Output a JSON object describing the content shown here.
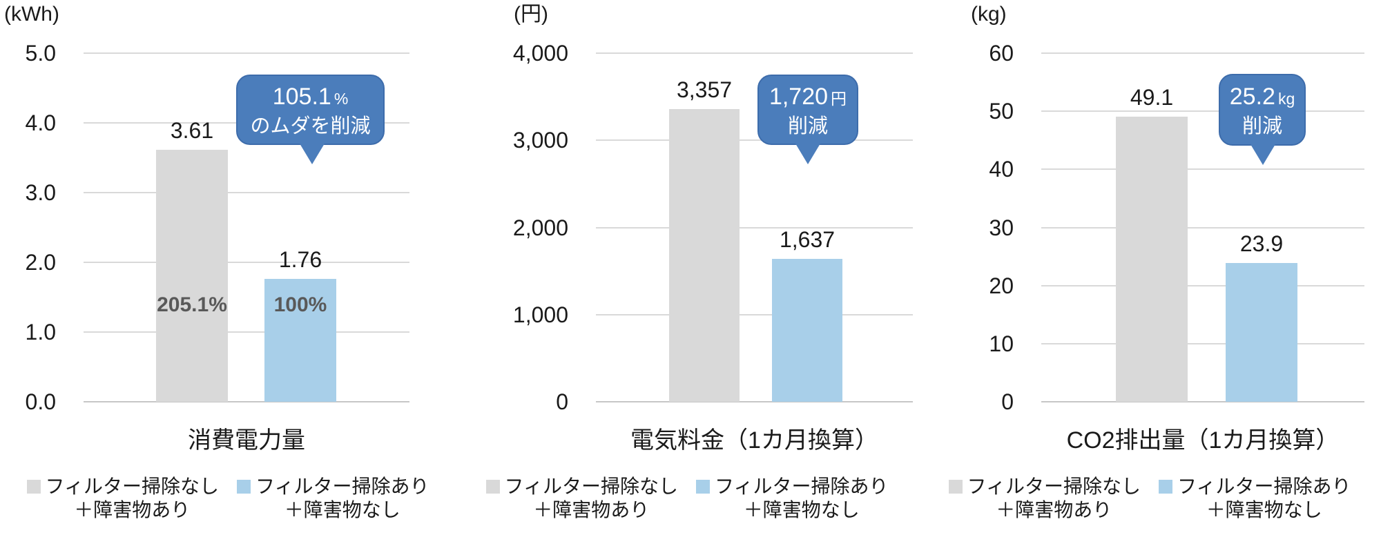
{
  "colors": {
    "bar_gray": "#d9d9d9",
    "bar_blue": "#a8cfe9",
    "callout_fill": "#4b7dbb",
    "callout_border": "#3d6cab",
    "gridline": "#d9d9d9",
    "inside_bar_label": "#595959",
    "text": "#1a1a1a"
  },
  "legend": {
    "items": [
      {
        "line1": "フィルター掃除なし",
        "line2": "＋障害物あり",
        "color": "#d9d9d9"
      },
      {
        "line1": "フィルター掃除あり",
        "line2": "＋障害物なし",
        "color": "#a8cfe9"
      }
    ]
  },
  "chart_data": [
    {
      "type": "bar",
      "unit": "(kWh)",
      "title": "消費電力量",
      "ylim": [
        0,
        5
      ],
      "yticks": [
        "5.0",
        "4.0",
        "3.0",
        "2.0",
        "1.0",
        "0.0"
      ],
      "categories": [
        "フィルター掃除なし＋障害物あり",
        "フィルター掃除あり＋障害物なし"
      ],
      "values": [
        3.61,
        1.76
      ],
      "value_labels": [
        "3.61",
        "1.76"
      ],
      "bar_inner_labels": [
        "205.1%",
        "100%"
      ],
      "callout": {
        "line1": "105.1",
        "line1_suffix": "%",
        "line2": "のムダを削減"
      },
      "grid": true,
      "legend_position": "bottom"
    },
    {
      "type": "bar",
      "unit": "(円)",
      "title": "電気料金（1カ月換算）",
      "ylim": [
        0,
        4000
      ],
      "yticks": [
        "4,000",
        "3,000",
        "2,000",
        "1,000",
        "0"
      ],
      "categories": [
        "フィルター掃除なし＋障害物あり",
        "フィルター掃除あり＋障害物なし"
      ],
      "values": [
        3357,
        1637
      ],
      "value_labels": [
        "3,357",
        "1,637"
      ],
      "bar_inner_labels": null,
      "callout": {
        "line1": "1,720",
        "line1_suffix": "円",
        "line2": "削減"
      },
      "grid": true,
      "legend_position": "bottom"
    },
    {
      "type": "bar",
      "unit": "(kg)",
      "title": "CO2排出量（1カ月換算）",
      "ylim": [
        0,
        60
      ],
      "yticks": [
        "60",
        "50",
        "40",
        "30",
        "20",
        "10",
        "0"
      ],
      "categories": [
        "フィルター掃除なし＋障害物あり",
        "フィルター掃除あり＋障害物なし"
      ],
      "values": [
        49.1,
        23.9
      ],
      "value_labels": [
        "49.1",
        "23.9"
      ],
      "bar_inner_labels": null,
      "callout": {
        "line1": "25.2",
        "line1_suffix": "kg",
        "line2": "削減"
      },
      "grid": true,
      "legend_position": "bottom"
    }
  ]
}
